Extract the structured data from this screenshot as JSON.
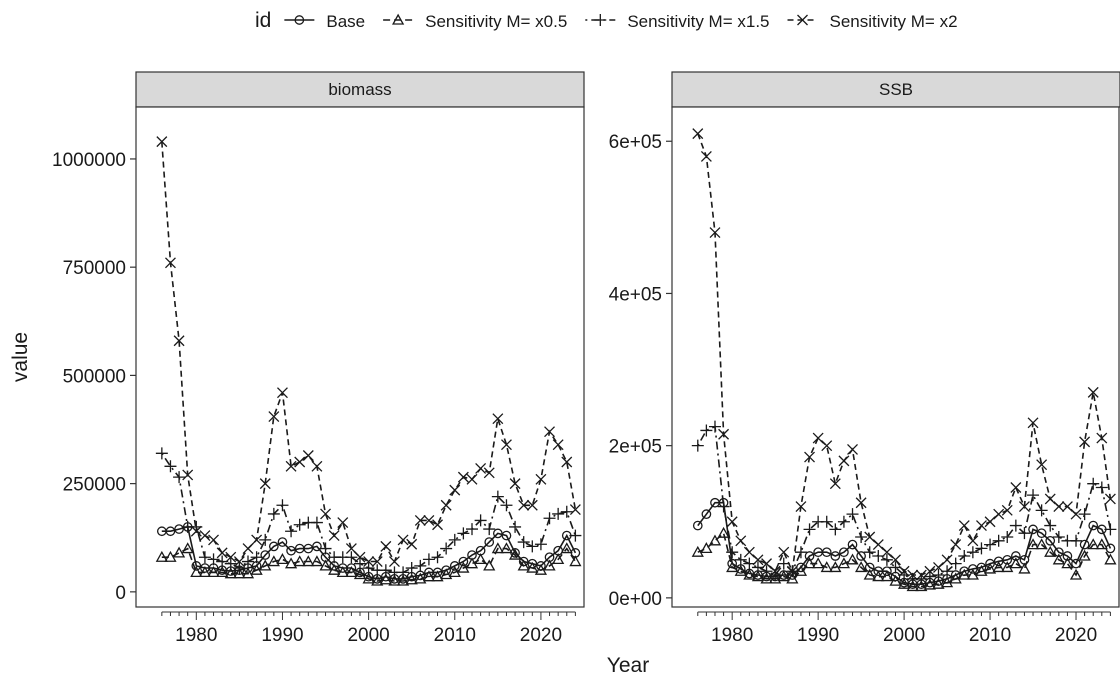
{
  "chart_data": {
    "type": "line",
    "legend": {
      "title": "id",
      "placement": "top",
      "entries": [
        "Base",
        "Sensitivity M= x0.5",
        "Sensitivity M= x1.5",
        "Sensitivity M= x2"
      ]
    },
    "xlabel": "Year",
    "ylabel": "value",
    "x": [
      1976,
      1977,
      1978,
      1979,
      1980,
      1981,
      1982,
      1983,
      1984,
      1985,
      1986,
      1987,
      1988,
      1989,
      1990,
      1991,
      1992,
      1993,
      1994,
      1995,
      1996,
      1997,
      1998,
      1999,
      2000,
      2001,
      2002,
      2003,
      2004,
      2005,
      2006,
      2007,
      2008,
      2009,
      2010,
      2011,
      2012,
      2013,
      2014,
      2015,
      2016,
      2017,
      2018,
      2019,
      2020,
      2021,
      2022,
      2023,
      2024
    ],
    "panels": [
      {
        "title": "biomass",
        "xlim": [
          1973,
          2025
        ],
        "ylim": [
          -35000,
          1120000
        ],
        "yticks": [
          0,
          250000,
          500000,
          750000,
          1000000
        ],
        "ytick_labels": [
          "0",
          "250000",
          "500000",
          "750000",
          "1000000"
        ],
        "xticks": [
          1980,
          1990,
          2000,
          2010,
          2020
        ],
        "xtick_labels": [
          "1980",
          "1990",
          "2000",
          "2010",
          "2020"
        ],
        "series": [
          {
            "name": "Base",
            "values": [
              140000,
              140000,
              145000,
              150000,
              60000,
              55000,
              55000,
              50000,
              48000,
              50000,
              55000,
              60000,
              85000,
              105000,
              115000,
              95000,
              100000,
              100000,
              105000,
              80000,
              60000,
              55000,
              55000,
              45000,
              35000,
              30000,
              35000,
              30000,
              30000,
              35000,
              38000,
              45000,
              45000,
              50000,
              60000,
              70000,
              85000,
              95000,
              115000,
              135000,
              130000,
              90000,
              70000,
              65000,
              60000,
              80000,
              95000,
              130000,
              90000
            ]
          },
          {
            "name": "Sensitivity M= x0.5",
            "values": [
              80000,
              80000,
              90000,
              100000,
              45000,
              45000,
              45000,
              45000,
              42000,
              42000,
              42000,
              50000,
              60000,
              70000,
              75000,
              65000,
              70000,
              70000,
              70000,
              60000,
              50000,
              45000,
              45000,
              40000,
              30000,
              25000,
              28000,
              25000,
              25000,
              28000,
              30000,
              35000,
              35000,
              40000,
              45000,
              55000,
              65000,
              75000,
              60000,
              100000,
              100000,
              85000,
              60000,
              55000,
              50000,
              60000,
              75000,
              100000,
              70000
            ]
          },
          {
            "name": "Sensitivity M= x1.5",
            "values": [
              320000,
              290000,
              265000,
              150000,
              150000,
              80000,
              75000,
              70000,
              65000,
              55000,
              70000,
              80000,
              120000,
              180000,
              200000,
              140000,
              155000,
              160000,
              160000,
              100000,
              80000,
              80000,
              80000,
              65000,
              55000,
              50000,
              50000,
              45000,
              45000,
              55000,
              60000,
              75000,
              80000,
              100000,
              120000,
              135000,
              145000,
              165000,
              145000,
              220000,
              200000,
              150000,
              115000,
              105000,
              110000,
              170000,
              180000,
              185000,
              130000
            ]
          },
          {
            "name": "Sensitivity M= x2",
            "values": [
              1040000,
              760000,
              580000,
              270000,
              140000,
              130000,
              120000,
              90000,
              80000,
              70000,
              100000,
              120000,
              250000,
              405000,
              460000,
              290000,
              300000,
              315000,
              290000,
              180000,
              130000,
              160000,
              100000,
              80000,
              70000,
              70000,
              105000,
              70000,
              120000,
              110000,
              165000,
              165000,
              155000,
              200000,
              235000,
              265000,
              260000,
              285000,
              275000,
              400000,
              340000,
              250000,
              200000,
              200000,
              260000,
              370000,
              340000,
              300000,
              190000
            ]
          }
        ]
      },
      {
        "title": "SSB",
        "xlim": [
          1973,
          2025
        ],
        "ylim": [
          -12000,
          645000
        ],
        "yticks": [
          0,
          200000,
          400000,
          600000
        ],
        "ytick_labels": [
          "0e+00",
          "2e+05",
          "4e+05",
          "6e+05"
        ],
        "xticks": [
          1980,
          1990,
          2000,
          2010,
          2020
        ],
        "xtick_labels": [
          "1980",
          "1990",
          "2000",
          "2010",
          "2020"
        ],
        "series": [
          {
            "name": "Base",
            "values": [
              95000,
              110000,
              125000,
              125000,
              45000,
              38000,
              32000,
              30000,
              28000,
              28000,
              30000,
              30000,
              40000,
              55000,
              60000,
              60000,
              55000,
              60000,
              70000,
              55000,
              40000,
              35000,
              35000,
              28000,
              20000,
              18000,
              18000,
              20000,
              22000,
              25000,
              30000,
              35000,
              38000,
              40000,
              45000,
              48000,
              50000,
              55000,
              50000,
              90000,
              85000,
              75000,
              60000,
              55000,
              45000,
              70000,
              95000,
              90000,
              65000
            ]
          },
          {
            "name": "Sensitivity M= x0.5",
            "values": [
              60000,
              65000,
              75000,
              85000,
              40000,
              35000,
              30000,
              28000,
              25000,
              25000,
              28000,
              25000,
              35000,
              45000,
              45000,
              40000,
              40000,
              45000,
              50000,
              40000,
              30000,
              28000,
              28000,
              22000,
              18000,
              15000,
              15000,
              17000,
              18000,
              20000,
              25000,
              30000,
              30000,
              35000,
              38000,
              40000,
              40000,
              45000,
              38000,
              70000,
              70000,
              60000,
              50000,
              45000,
              30000,
              55000,
              70000,
              70000,
              50000
            ]
          },
          {
            "name": "Sensitivity M= x1.5",
            "values": [
              200000,
              220000,
              225000,
              120000,
              60000,
              50000,
              45000,
              40000,
              35000,
              30000,
              45000,
              35000,
              60000,
              90000,
              100000,
              100000,
              90000,
              100000,
              110000,
              80000,
              60000,
              55000,
              50000,
              40000,
              30000,
              25000,
              25000,
              28000,
              30000,
              35000,
              45000,
              55000,
              60000,
              65000,
              70000,
              75000,
              80000,
              95000,
              85000,
              135000,
              115000,
              95000,
              80000,
              75000,
              75000,
              110000,
              150000,
              145000,
              90000
            ]
          },
          {
            "name": "Sensitivity M= x2",
            "values": [
              610000,
              580000,
              480000,
              215000,
              100000,
              75000,
              60000,
              50000,
              45000,
              35000,
              60000,
              35000,
              120000,
              185000,
              210000,
              200000,
              150000,
              180000,
              195000,
              125000,
              80000,
              70000,
              60000,
              50000,
              35000,
              30000,
              30000,
              35000,
              40000,
              50000,
              70000,
              95000,
              75000,
              95000,
              100000,
              110000,
              115000,
              145000,
              120000,
              230000,
              175000,
              130000,
              120000,
              120000,
              110000,
              205000,
              270000,
              210000,
              130000
            ]
          }
        ]
      }
    ]
  }
}
